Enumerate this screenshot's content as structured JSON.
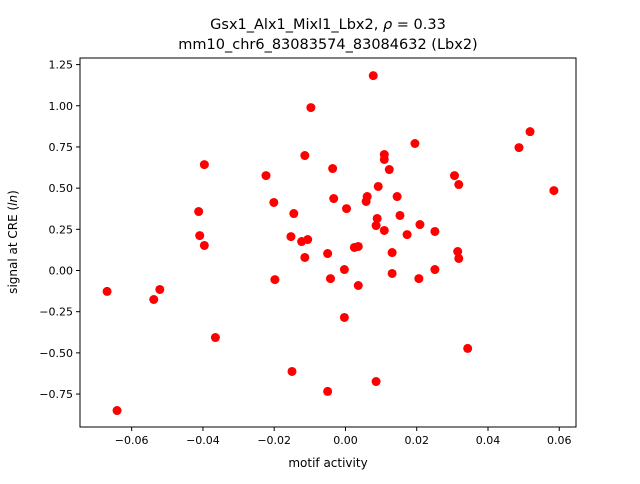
{
  "chart_data": {
    "type": "scatter",
    "title_line1_prefix": "Gsx1_Alx1_Mixl1_Lbx2, ",
    "title_rho_symbol": "ρ",
    "title_rho_value": " = 0.33",
    "title_line2": "mm10_chr6_83083574_83084632 (Lbx2)",
    "xlabel": "motif activity",
    "ylabel_prefix": "signal at CRE (",
    "ylabel_italic": "ln",
    "ylabel_suffix": ")",
    "xlim": [
      -0.0745,
      0.0647
    ],
    "ylim": [
      -0.95,
      1.29
    ],
    "xticks": [
      -0.06,
      -0.04,
      -0.02,
      0.0,
      0.02,
      0.04,
      0.06
    ],
    "xtick_labels": [
      "−0.06",
      "−0.04",
      "−0.02",
      "0.00",
      "0.02",
      "0.04",
      "0.06"
    ],
    "yticks": [
      -0.75,
      -0.5,
      -0.25,
      0.0,
      0.25,
      0.5,
      0.75,
      1.0,
      1.25
    ],
    "ytick_labels": [
      "−0.75",
      "−0.50",
      "−0.25",
      "0.00",
      "0.25",
      "0.50",
      "0.75",
      "1.00",
      "1.25"
    ],
    "grid": false,
    "marker_color": "#ff0000",
    "points": [
      [
        -0.0669,
        -0.127
      ],
      [
        -0.0641,
        -0.85
      ],
      [
        -0.0538,
        -0.176
      ],
      [
        -0.0521,
        -0.115
      ],
      [
        -0.0365,
        -0.407
      ],
      [
        -0.0412,
        0.358
      ],
      [
        -0.0409,
        0.212
      ],
      [
        -0.0396,
        0.643
      ],
      [
        -0.0396,
        0.152
      ],
      [
        -0.0223,
        0.576
      ],
      [
        -0.0201,
        0.413
      ],
      [
        -0.0198,
        -0.055
      ],
      [
        -0.015,
        -0.613
      ],
      [
        -0.0153,
        0.206
      ],
      [
        -0.0145,
        0.346
      ],
      [
        -0.0123,
        0.176
      ],
      [
        -0.0114,
        0.698
      ],
      [
        -0.0114,
        0.079
      ],
      [
        -0.0106,
        0.188
      ],
      [
        -0.0097,
        0.989
      ],
      [
        -0.005,
        -0.734
      ],
      [
        -0.005,
        0.103
      ],
      [
        -0.0042,
        -0.049
      ],
      [
        -0.0036,
        0.619
      ],
      [
        -0.0033,
        0.437
      ],
      [
        -0.0003,
        0.006
      ],
      [
        -0.0003,
        -0.285
      ],
      [
        0.0003,
        0.376
      ],
      [
        0.0025,
        0.14
      ],
      [
        0.0036,
        0.146
      ],
      [
        0.0036,
        -0.091
      ],
      [
        0.0058,
        0.419
      ],
      [
        0.0061,
        0.449
      ],
      [
        0.0078,
        1.183
      ],
      [
        0.0086,
        -0.674
      ],
      [
        0.0086,
        0.273
      ],
      [
        0.0092,
        0.51
      ],
      [
        0.0089,
        0.316
      ],
      [
        0.0109,
        0.243
      ],
      [
        0.0109,
        0.704
      ],
      [
        0.0109,
        0.674
      ],
      [
        0.0123,
        0.613
      ],
      [
        0.0131,
        0.109
      ],
      [
        0.0131,
        -0.018
      ],
      [
        0.0145,
        0.449
      ],
      [
        0.0153,
        0.334
      ],
      [
        0.0173,
        0.218
      ],
      [
        0.0195,
        0.771
      ],
      [
        0.0206,
        -0.049
      ],
      [
        0.0209,
        0.279
      ],
      [
        0.0251,
        0.237
      ],
      [
        0.0251,
        0.006
      ],
      [
        0.0306,
        0.576
      ],
      [
        0.0315,
        0.115
      ],
      [
        0.0318,
        0.073
      ],
      [
        0.0318,
        0.522
      ],
      [
        0.0343,
        -0.473
      ],
      [
        0.0487,
        0.746
      ],
      [
        0.0518,
        0.843
      ],
      [
        0.0585,
        0.485
      ]
    ]
  }
}
